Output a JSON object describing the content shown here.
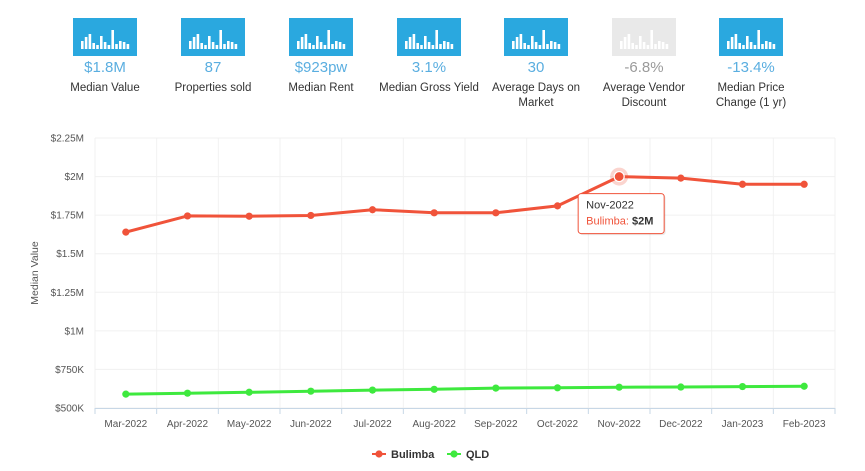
{
  "colors": {
    "accent": "#2aa8df",
    "accent_disabled": "#e9e9e9",
    "value_text": "#5aaee0",
    "bulimba": "#f0533a",
    "qld": "#3ee93e",
    "tooltip_border": "#f0533a"
  },
  "stats": [
    {
      "icon": "bar-chart-icon",
      "value": "$1.8M",
      "label": "Median Value",
      "disabled": false
    },
    {
      "icon": "bar-chart-icon",
      "value": "87",
      "label": "Properties sold",
      "disabled": false
    },
    {
      "icon": "bar-chart-icon",
      "value": "$923pw",
      "label": "Median Rent",
      "disabled": false
    },
    {
      "icon": "bar-chart-icon",
      "value": "3.1%",
      "label": "Median Gross Yield",
      "disabled": false
    },
    {
      "icon": "bar-chart-icon",
      "value": "30",
      "label": "Average Days on Market",
      "disabled": false
    },
    {
      "icon": "bar-chart-icon",
      "value": "-6.8%",
      "label": "Average Vendor Discount",
      "disabled": true
    },
    {
      "icon": "bar-chart-icon",
      "value": "-13.4%",
      "label": "Median Price Change (1 yr)",
      "disabled": false
    }
  ],
  "chart_data": {
    "type": "line",
    "title": "",
    "xlabel": "",
    "ylabel": "Median Value",
    "categories": [
      "Mar-2022",
      "Apr-2022",
      "May-2022",
      "Jun-2022",
      "Jul-2022",
      "Aug-2022",
      "Sep-2022",
      "Oct-2022",
      "Nov-2022",
      "Dec-2022",
      "Jan-2023",
      "Feb-2023"
    ],
    "series": [
      {
        "name": "Bulimba",
        "color": "#f0533a",
        "values": [
          1640000,
          1745000,
          1743000,
          1748000,
          1785000,
          1765000,
          1765000,
          1810000,
          2000000,
          1990000,
          1950000,
          1950000
        ]
      },
      {
        "name": "QLD",
        "color": "#3ee93e",
        "values": [
          590000,
          596000,
          602000,
          609000,
          616000,
          621000,
          629000,
          631000,
          635000,
          636000,
          639000,
          641000
        ]
      }
    ],
    "ylim": [
      500000,
      2250000
    ],
    "yticks": [
      {
        "value": 500000,
        "label": "$500K"
      },
      {
        "value": 750000,
        "label": "$750K"
      },
      {
        "value": 1000000,
        "label": "$1M"
      },
      {
        "value": 1250000,
        "label": "$1.25M"
      },
      {
        "value": 1500000,
        "label": "$1.5M"
      },
      {
        "value": 1750000,
        "label": "$1.75M"
      },
      {
        "value": 2000000,
        "label": "$2M"
      },
      {
        "value": 2250000,
        "label": "$2.25M"
      }
    ],
    "grid": true,
    "legend_position": "bottom-center",
    "tooltip": {
      "category": "Nov-2022",
      "title": "Nov-2022",
      "series": "Bulimba",
      "series_label": "Bulimba:",
      "value_label": "$2M"
    }
  }
}
